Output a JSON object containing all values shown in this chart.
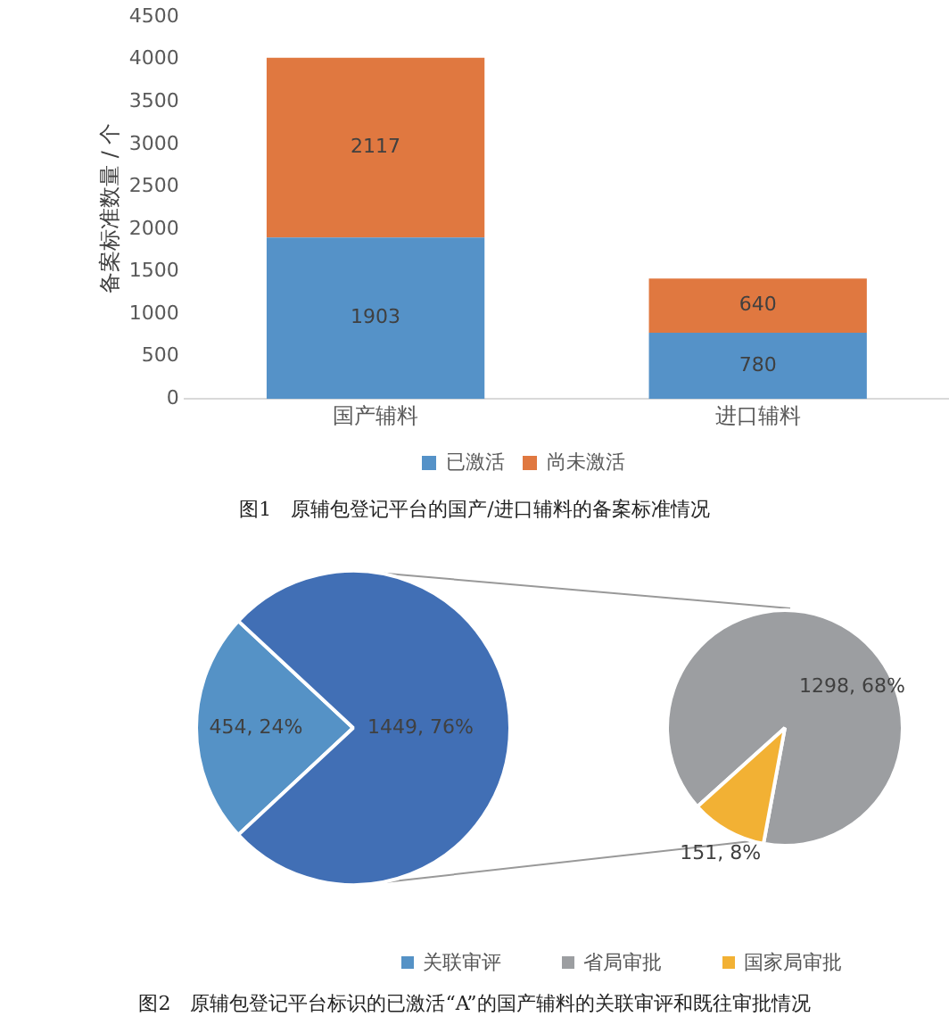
{
  "chart_data": [
    {
      "type": "bar",
      "title": "图1　原辅包登记平台的国产/进口辅料的备案标准情况",
      "ylabel": "备案标准数量 / 个",
      "categories": [
        "国产辅料",
        "进口辅料"
      ],
      "stacked": true,
      "series": [
        {
          "name": "已激活",
          "color": "#5592c8",
          "values": [
            1903,
            780
          ]
        },
        {
          "name": "尚未激活",
          "color": "#e07840",
          "values": [
            2117,
            640
          ]
        }
      ],
      "ylim": [
        0,
        4500
      ],
      "yticks": [
        0,
        500,
        1000,
        1500,
        2000,
        2500,
        3000,
        3500,
        4000,
        4500
      ],
      "grid": false,
      "legend": "bottom",
      "data_labels": true
    },
    {
      "type": "pie",
      "title": "图2　原辅包登记平台标识的已激活“A”的国产辅料的关联审评和既往审批情况",
      "categories": [
        "关联审评",
        null
      ],
      "values": [
        454,
        1449
      ],
      "colors": [
        "#5592c6",
        "#416fb5"
      ],
      "value_labels": [
        "454, 24%",
        "1449, 76%"
      ],
      "legend": "bottom"
    },
    {
      "type": "pie",
      "categories": [
        "省局审批",
        "国家局审批"
      ],
      "values": [
        1298,
        151
      ],
      "colors": [
        "#9c9ea1",
        "#f2b134"
      ],
      "value_labels": [
        "1298, 68%",
        "151, 8%"
      ],
      "legend": "bottom"
    }
  ]
}
